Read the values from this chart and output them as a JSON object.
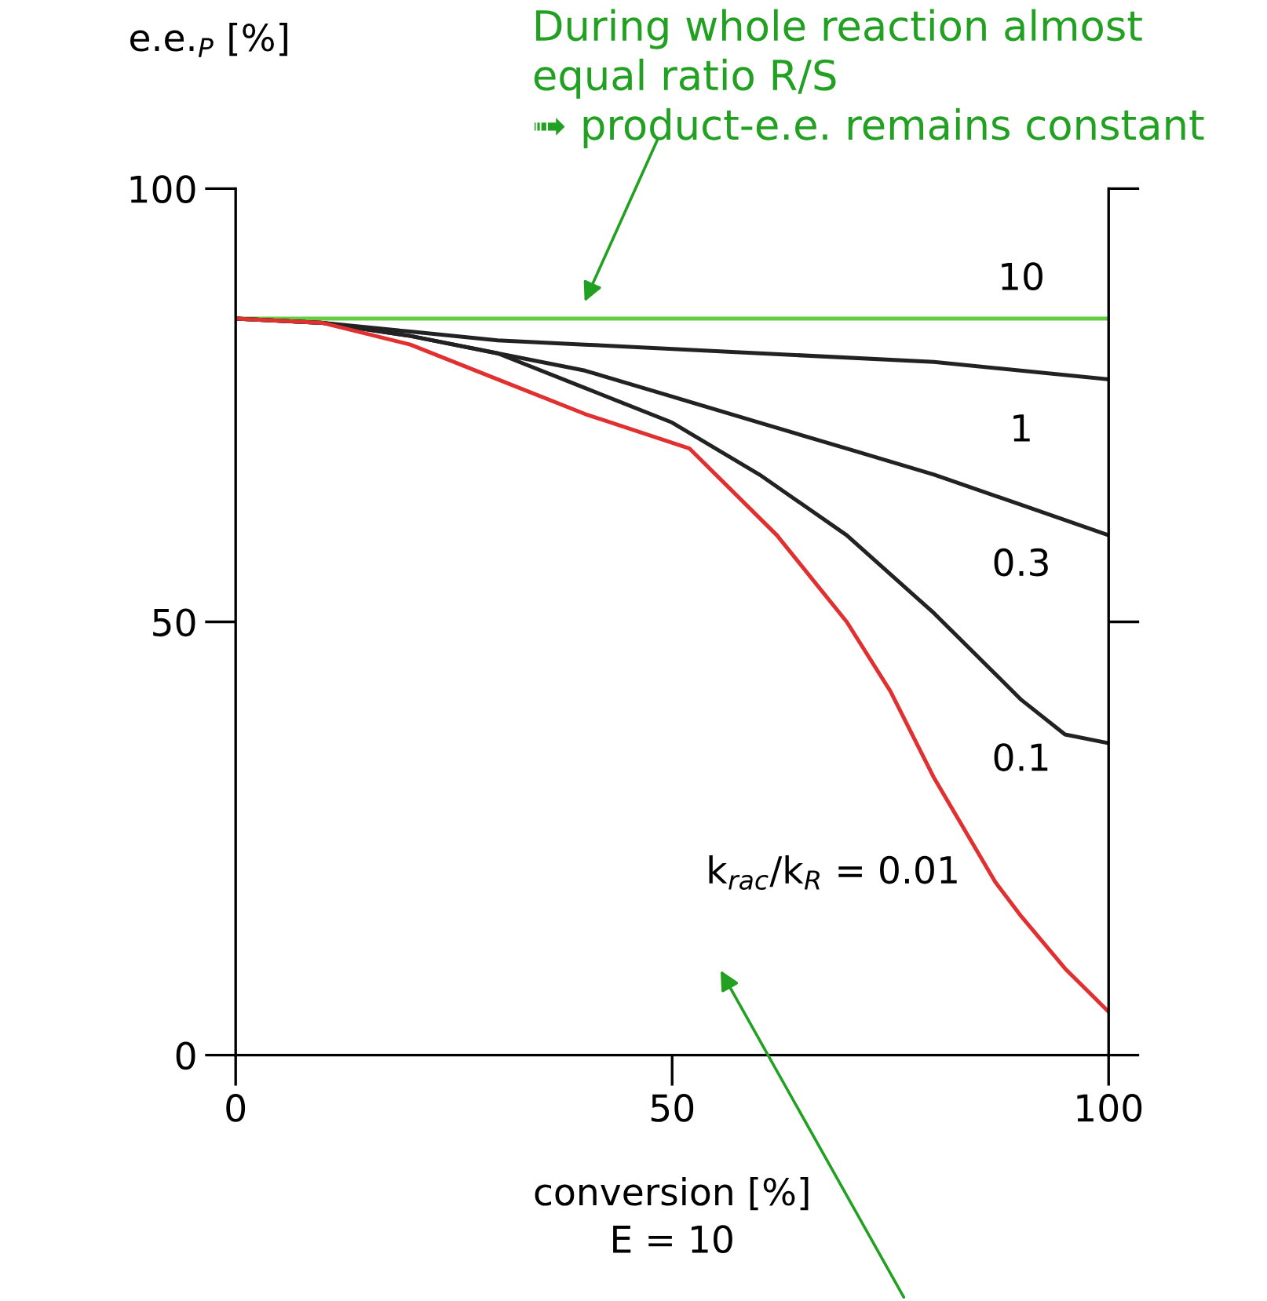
{
  "chart_data": {
    "type": "line",
    "xlabel": "conversion [%]",
    "ylabel": "e.e.$_{P}$ [%]",
    "xlim": [
      0,
      100
    ],
    "ylim": [
      0,
      100
    ],
    "xticks": [
      0,
      50,
      100
    ],
    "yticks": [
      0,
      50,
      100
    ],
    "grid": false,
    "marker": "none",
    "line_style": "solid",
    "series": [
      {
        "name": "10",
        "color": "#66cc44",
        "x": [
          0,
          100
        ],
        "values": [
          85,
          85
        ]
      },
      {
        "name": "1",
        "color": "#222222",
        "x": [
          0,
          10,
          20,
          30,
          40,
          60,
          80,
          100
        ],
        "values": [
          85,
          84.5,
          83.5,
          82.5,
          82,
          81,
          80,
          78
        ]
      },
      {
        "name": "0.3",
        "color": "#222222",
        "x": [
          0,
          10,
          20,
          30,
          40,
          50,
          60,
          70,
          80,
          90,
          100
        ],
        "values": [
          85,
          84.5,
          83,
          81,
          79,
          76,
          73,
          70,
          67,
          63.5,
          60
        ]
      },
      {
        "name": "0.1",
        "color": "#222222",
        "x": [
          0,
          10,
          20,
          30,
          40,
          50,
          60,
          70,
          80,
          86,
          90,
          95,
          100
        ],
        "values": [
          85,
          84.5,
          83,
          81,
          77,
          73,
          67,
          60,
          51,
          45,
          41,
          37,
          36
        ]
      },
      {
        "name": "k$_{rac}$/k$_{R}$ = 0.01",
        "color": "#e03030",
        "x": [
          0,
          10,
          20,
          30,
          40,
          52,
          62,
          70,
          75,
          80,
          87,
          90,
          95,
          100
        ],
        "values": [
          85,
          84.5,
          82,
          78,
          74,
          70,
          60,
          50,
          42,
          32,
          20,
          16,
          10,
          5
        ]
      }
    ],
    "annotations": [
      "During whole reaction almost\nequal ratio R/S\n➟ product-e.e. remains constant",
      "E = 10"
    ]
  }
}
